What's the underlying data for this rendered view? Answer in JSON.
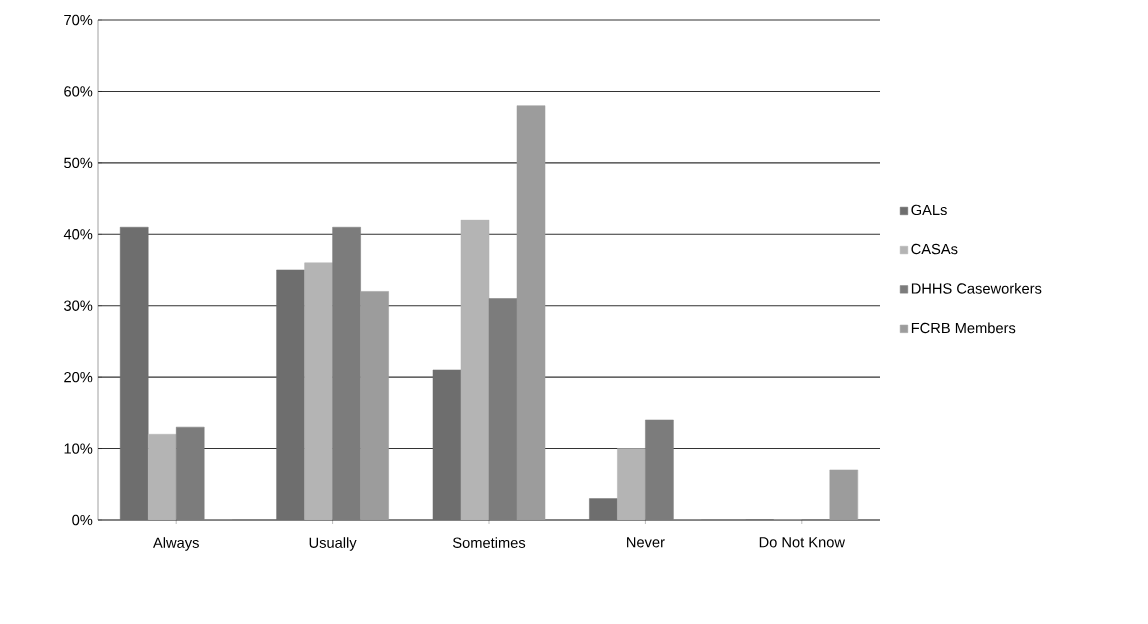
{
  "chart_data": {
    "type": "bar",
    "categories": [
      "Always",
      "Usually",
      "Sometimes",
      "Never",
      "Do Not Know"
    ],
    "series": [
      {
        "name": "GALs",
        "color": "#6e6e6e",
        "values": [
          41,
          35,
          21,
          3,
          0
        ]
      },
      {
        "name": "CASAs",
        "color": "#b4b4b4",
        "values": [
          12,
          36,
          42,
          10,
          0
        ]
      },
      {
        "name": "DHHS Caseworkers",
        "color": "#7c7c7c",
        "values": [
          13,
          41,
          31,
          14,
          0
        ]
      },
      {
        "name": "FCRB Members",
        "color": "#9c9c9c",
        "values": [
          0,
          32,
          58,
          0,
          7
        ]
      }
    ],
    "ylim": [
      0,
      70
    ],
    "yticks": [
      {
        "value": 0,
        "label": "0%"
      },
      {
        "value": 10,
        "label": "10%"
      },
      {
        "value": 20,
        "label": "20%"
      },
      {
        "value": 30,
        "label": "30%"
      },
      {
        "value": 40,
        "label": "40%"
      },
      {
        "value": 50,
        "label": "50%"
      },
      {
        "value": 60,
        "label": "60%"
      },
      {
        "value": 70,
        "label": "70%"
      }
    ],
    "grid": "y",
    "legend": "right"
  }
}
